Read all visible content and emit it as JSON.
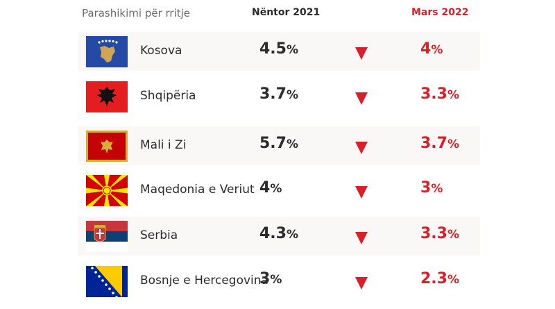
{
  "header": {
    "label": "Parashikimi për rritje",
    "col_nov": "Nëntor 2021",
    "col_mar": "Mars 2022"
  },
  "colors": {
    "accent": "#d9202a",
    "text": "#2b2b2b"
  },
  "chart_data": {
    "type": "table",
    "columns": [
      "Parashikimi për rritje",
      "Nëntor 2021",
      "Mars 2022"
    ],
    "rows": [
      {
        "country": "Kosova",
        "flag": "kosovo-flag-icon",
        "nov": "4.5",
        "mar": "4"
      },
      {
        "country": "Shqipëria",
        "flag": "albania-flag-icon",
        "nov": "3.7",
        "mar": "3.3"
      },
      {
        "country": "Mali i Zi",
        "flag": "montenegro-flag-icon",
        "nov": "5.7",
        "mar": "3.7"
      },
      {
        "country": "Maqedonia e Veriut",
        "flag": "north-macedonia-flag-icon",
        "nov": "4",
        "mar": "3"
      },
      {
        "country": "Serbia",
        "flag": "serbia-flag-icon",
        "nov": "4.3",
        "mar": "3.3"
      },
      {
        "country": "Bosnje e Hercegovina",
        "flag": "bosnia-flag-icon",
        "nov": "3",
        "mar": "2.3"
      }
    ],
    "unit": "%",
    "trend_icon": "down-arrow-icon"
  }
}
